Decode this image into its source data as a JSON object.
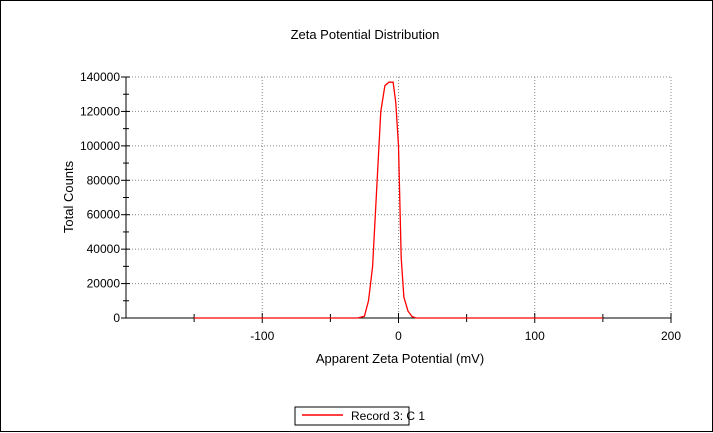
{
  "chart_data": {
    "type": "line",
    "title": "Zeta Potential Distribution",
    "xlabel": "Apparent Zeta Potential (mV)",
    "ylabel": "Total Counts",
    "xlim": [
      -200,
      200
    ],
    "ylim": [
      0,
      140000
    ],
    "x_ticks": [
      -100,
      0,
      100,
      200
    ],
    "x_tick_labels": [
      "-100",
      "0",
      "100",
      "200"
    ],
    "y_ticks": [
      0,
      20000,
      40000,
      60000,
      80000,
      100000,
      120000,
      140000
    ],
    "y_tick_labels": [
      "0",
      "20000",
      "40000",
      "60000",
      "80000",
      "100000",
      "120000",
      "140000"
    ],
    "grid": true,
    "legend_position": "bottom-center",
    "series": [
      {
        "name": "Record 3: C 1",
        "color": "#ff0000",
        "x": [
          -150,
          -30,
          -25,
          -22,
          -19,
          -16,
          -13,
          -10,
          -7,
          -4,
          -2,
          0,
          2,
          4,
          7,
          10,
          13,
          20,
          150
        ],
        "y": [
          0,
          0,
          1000,
          10000,
          30000,
          75000,
          120000,
          135000,
          137000,
          137000,
          125000,
          100000,
          35000,
          12000,
          4000,
          800,
          0,
          0,
          0
        ]
      }
    ]
  }
}
